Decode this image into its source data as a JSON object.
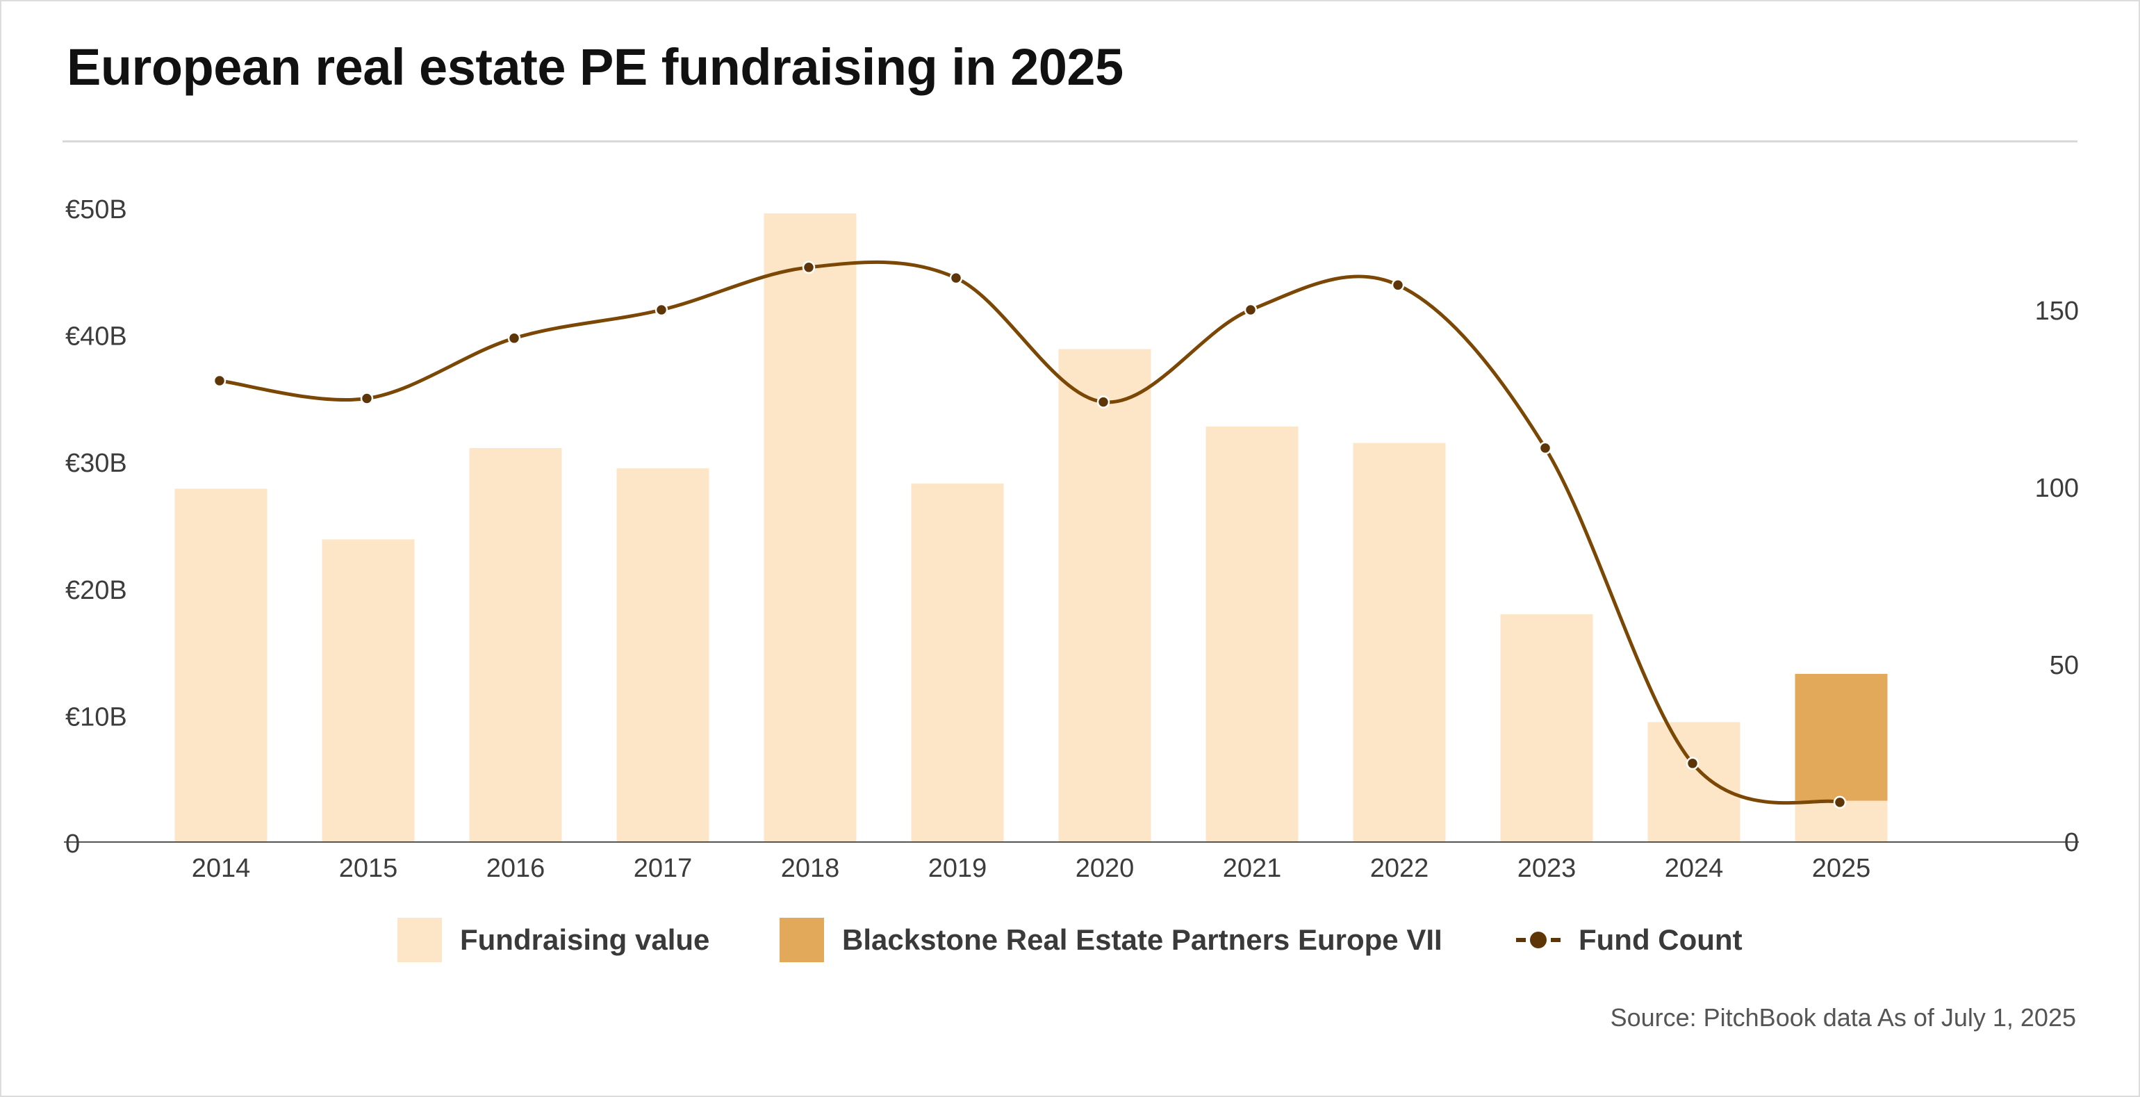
{
  "title": "European real estate PE fundraising in 2025",
  "source": "Source: PitchBook data As of July 1, 2025",
  "legend": {
    "fundraising_value": "Fundraising value",
    "blackstone": "Blackstone Real Estate Partners Europe VII",
    "fund_count": "Fund Count"
  },
  "colors": {
    "fundraising_value": "#fce6c7",
    "blackstone": "#e3a95a",
    "fund_count": "#7a4705",
    "point_fill": "#5e3506"
  },
  "chart_data": {
    "type": "bar",
    "categories": [
      "2014",
      "2015",
      "2016",
      "2017",
      "2018",
      "2019",
      "2020",
      "2021",
      "2022",
      "2023",
      "2024",
      "2025"
    ],
    "series": [
      {
        "name": "Fundraising value",
        "type": "bar",
        "axis": "left",
        "values": [
          27.8,
          23.8,
          31.0,
          29.4,
          49.5,
          28.2,
          38.8,
          32.7,
          31.4,
          17.9,
          9.4,
          3.2
        ]
      },
      {
        "name": "Blackstone Real Estate Partners Europe VII",
        "type": "bar",
        "stacked": true,
        "axis": "left",
        "values": [
          0,
          0,
          0,
          0,
          0,
          0,
          0,
          0,
          0,
          0,
          0,
          10.0
        ]
      },
      {
        "name": "Fund Count",
        "type": "line",
        "axis": "right",
        "values": [
          130,
          125,
          142,
          150,
          162,
          159,
          124,
          150,
          157,
          111,
          22,
          11
        ]
      }
    ],
    "y_left": {
      "ticks": [
        "0",
        "€10B",
        "€20B",
        "€30B",
        "€40B",
        "€50B"
      ],
      "range": [
        0,
        50
      ]
    },
    "y_right": {
      "ticks": [
        "0",
        "50",
        "100",
        "150"
      ],
      "range": [
        0,
        172
      ]
    },
    "grid": false,
    "legend_position": "bottom"
  }
}
